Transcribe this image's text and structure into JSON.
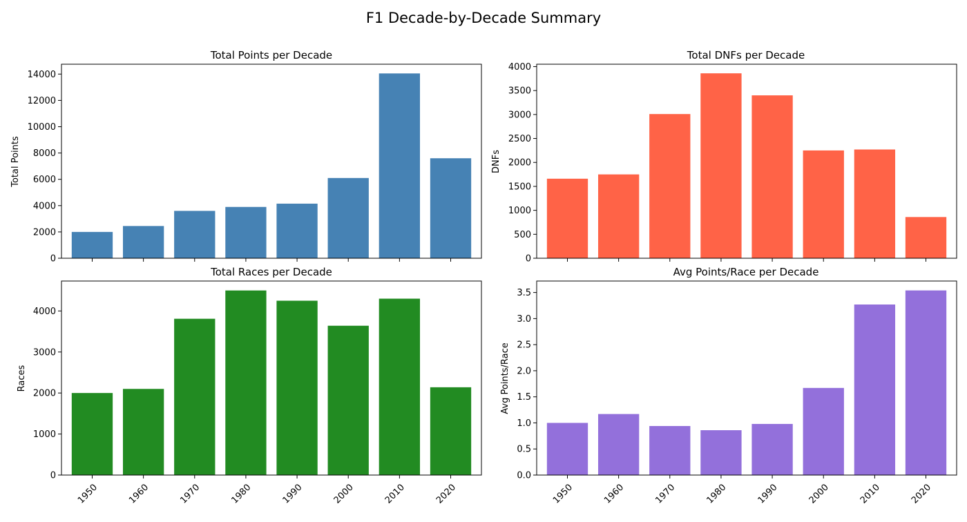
{
  "figure": {
    "title": "F1 Decade-by-Decade Summary"
  },
  "chart_data": [
    {
      "type": "bar",
      "title": "Total Points per Decade",
      "xlabel": "",
      "ylabel": "Total Points",
      "categories": [
        "1950",
        "1960",
        "1970",
        "1980",
        "1990",
        "2000",
        "2010",
        "2020"
      ],
      "values": [
        2000,
        2450,
        3600,
        3900,
        4150,
        6100,
        14050,
        7600
      ],
      "ylim": [
        0,
        14750
      ],
      "yticks": [
        0,
        2000,
        4000,
        6000,
        8000,
        10000,
        12000,
        14000
      ],
      "ytick_labels": [
        "0",
        "2000",
        "4000",
        "6000",
        "8000",
        "10000",
        "12000",
        "14000"
      ],
      "color": "#4682b4",
      "show_xtick_labels": false
    },
    {
      "type": "bar",
      "title": "Total DNFs per Decade",
      "xlabel": "",
      "ylabel": "DNFs",
      "categories": [
        "1950",
        "1960",
        "1970",
        "1980",
        "1990",
        "2000",
        "2010",
        "2020"
      ],
      "values": [
        1660,
        1750,
        3010,
        3860,
        3400,
        2250,
        2270,
        860
      ],
      "ylim": [
        0,
        4050
      ],
      "yticks": [
        0,
        500,
        1000,
        1500,
        2000,
        2500,
        3000,
        3500,
        4000
      ],
      "ytick_labels": [
        "0",
        "500",
        "1000",
        "1500",
        "2000",
        "2500",
        "3000",
        "3500",
        "4000"
      ],
      "color": "#ff6347",
      "show_xtick_labels": false
    },
    {
      "type": "bar",
      "title": "Total Races per Decade",
      "xlabel": "",
      "ylabel": "Races",
      "categories": [
        "1950",
        "1960",
        "1970",
        "1980",
        "1990",
        "2000",
        "2010",
        "2020"
      ],
      "values": [
        2000,
        2100,
        3810,
        4500,
        4250,
        3640,
        4300,
        2140
      ],
      "ylim": [
        0,
        4730
      ],
      "yticks": [
        0,
        1000,
        2000,
        3000,
        4000
      ],
      "ytick_labels": [
        "0",
        "1000",
        "2000",
        "3000",
        "4000"
      ],
      "color": "#228b22",
      "show_xtick_labels": true
    },
    {
      "type": "bar",
      "title": "Avg Points/Race per Decade",
      "xlabel": "",
      "ylabel": "Avg Points/Race",
      "categories": [
        "1950",
        "1960",
        "1970",
        "1980",
        "1990",
        "2000",
        "2010",
        "2020"
      ],
      "values": [
        1.0,
        1.17,
        0.94,
        0.86,
        0.98,
        1.67,
        3.27,
        3.54
      ],
      "ylim": [
        0,
        3.72
      ],
      "yticks": [
        0,
        0.5,
        1.0,
        1.5,
        2.0,
        2.5,
        3.0,
        3.5
      ],
      "ytick_labels": [
        "0.0",
        "0.5",
        "1.0",
        "1.5",
        "2.0",
        "2.5",
        "3.0",
        "3.5"
      ],
      "color": "#9370db",
      "show_xtick_labels": true
    }
  ]
}
